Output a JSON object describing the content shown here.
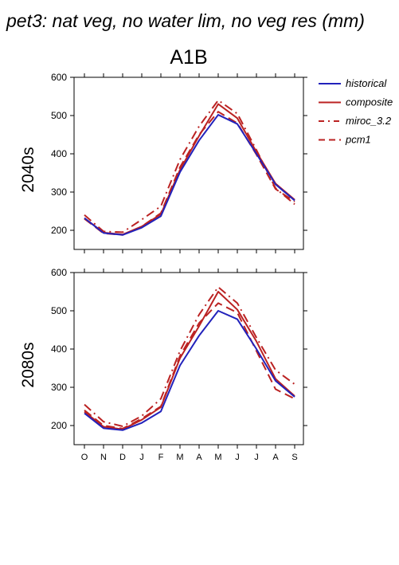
{
  "page": {
    "title": "pet3: nat veg, no water lim, no veg res (mm)",
    "scenario": "A1B"
  },
  "legend": [
    {
      "name": "historical",
      "color": "#2222bb",
      "dash": "solid"
    },
    {
      "name": "composite",
      "color": "#bb2222",
      "dash": "solid"
    },
    {
      "name": "miroc_3.2",
      "color": "#bb2222",
      "dash": "dashdot"
    },
    {
      "name": "pcm1",
      "color": "#bb2222",
      "dash": "dashed"
    }
  ],
  "chart_data": [
    {
      "type": "line",
      "panel_label": "2040s",
      "categories": [
        "O",
        "N",
        "D",
        "J",
        "F",
        "M",
        "A",
        "M",
        "J",
        "J",
        "A",
        "S"
      ],
      "ylim": [
        150,
        600
      ],
      "yticks": [
        200,
        300,
        400,
        500,
        600
      ],
      "series": [
        {
          "name": "historical",
          "values": [
            232,
            193,
            188,
            207,
            237,
            352,
            435,
            502,
            478,
            400,
            320,
            278
          ]
        },
        {
          "name": "composite",
          "values": [
            232,
            194,
            189,
            210,
            242,
            358,
            447,
            530,
            493,
            405,
            322,
            280
          ]
        },
        {
          "name": "miroc_3.2",
          "values": [
            240,
            197,
            195,
            228,
            263,
            385,
            472,
            540,
            505,
            410,
            310,
            268
          ]
        },
        {
          "name": "pcm1",
          "values": [
            230,
            192,
            188,
            210,
            245,
            365,
            450,
            510,
            480,
            398,
            308,
            275
          ]
        }
      ]
    },
    {
      "type": "line",
      "panel_label": "2080s",
      "categories": [
        "O",
        "N",
        "D",
        "J",
        "F",
        "M",
        "A",
        "M",
        "J",
        "J",
        "A",
        "S"
      ],
      "ylim": [
        150,
        600
      ],
      "yticks": [
        200,
        300,
        400,
        500,
        600
      ],
      "series": [
        {
          "name": "historical",
          "values": [
            232,
            193,
            188,
            207,
            237,
            357,
            435,
            500,
            478,
            400,
            317,
            275
          ]
        },
        {
          "name": "composite",
          "values": [
            236,
            197,
            190,
            215,
            248,
            376,
            460,
            550,
            503,
            420,
            322,
            277
          ]
        },
        {
          "name": "miroc_3.2",
          "values": [
            255,
            210,
            198,
            225,
            270,
            395,
            490,
            562,
            520,
            430,
            345,
            308
          ]
        },
        {
          "name": "pcm1",
          "values": [
            240,
            200,
            192,
            218,
            250,
            382,
            468,
            520,
            495,
            395,
            295,
            270
          ]
        }
      ]
    }
  ]
}
